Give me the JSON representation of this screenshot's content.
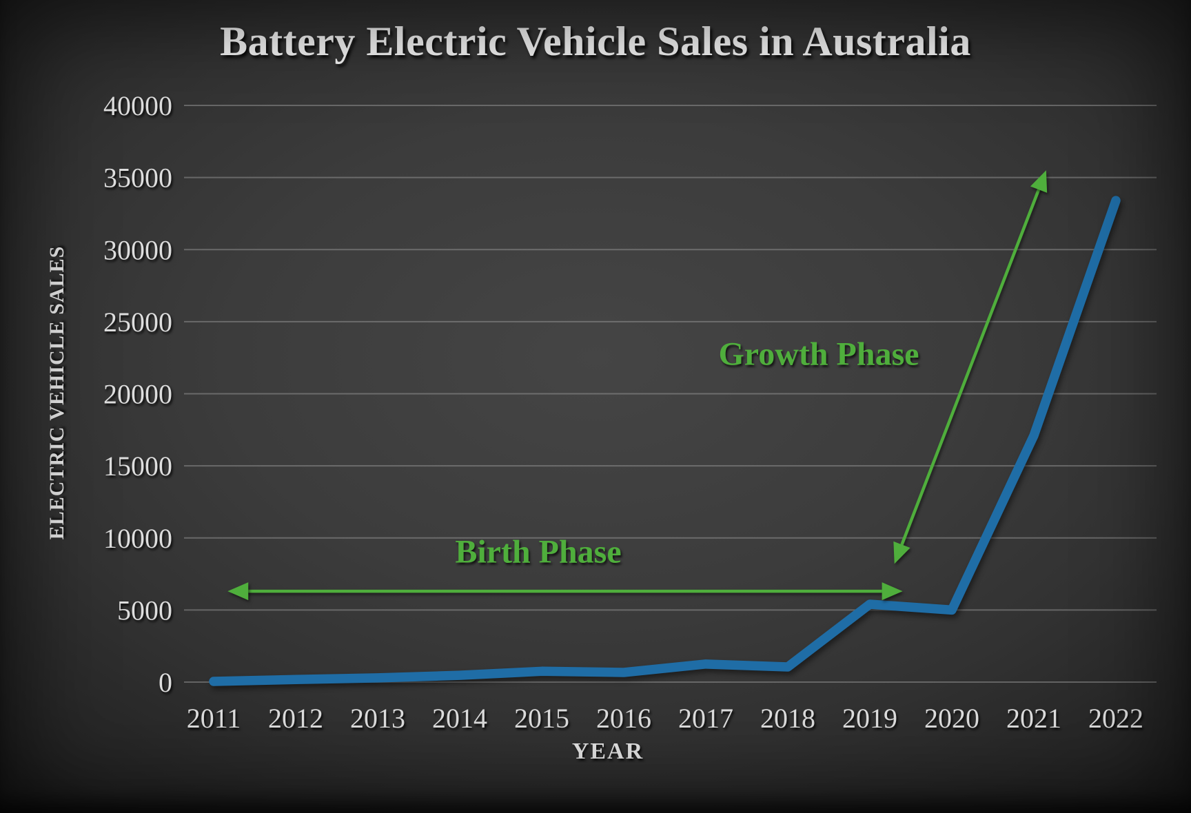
{
  "chart_data": {
    "type": "line",
    "title": "Battery Electric Vehicle Sales in Australia",
    "xlabel": "YEAR",
    "ylabel": "ELECTRIC VEHICLE SALES",
    "series_name": "Battery electric vehicle sales",
    "categories": [
      2011,
      2012,
      2013,
      2014,
      2015,
      2016,
      2017,
      2018,
      2019,
      2020,
      2021,
      2022
    ],
    "values": [
      49,
      180,
      290,
      470,
      750,
      670,
      1250,
      1050,
      5400,
      5000,
      17100,
      33400
    ],
    "ylim": [
      0,
      40000
    ],
    "ytick_step": 5000,
    "yticks": [
      0,
      5000,
      10000,
      15000,
      20000,
      25000,
      30000,
      35000,
      40000
    ],
    "grid": "horizontal",
    "legend": "none",
    "annotations": [
      {
        "id": "birth",
        "label": "Birth Phase",
        "arrow": {
          "x1": 2011.17,
          "y1": 6300,
          "x2": 2019.4,
          "y2": 6300,
          "double": true
        }
      },
      {
        "id": "growth",
        "label": "Growth Phase",
        "arrow": {
          "x1": 2019.3,
          "y1": 8200,
          "x2": 2021.15,
          "y2": 35500,
          "double": true
        }
      }
    ],
    "colors": {
      "line": "#1f6da6",
      "annotation": "#4fae3c",
      "background": "#3c3c3c",
      "grid": "#9a9a9a",
      "text": "#e8e8e8"
    }
  }
}
